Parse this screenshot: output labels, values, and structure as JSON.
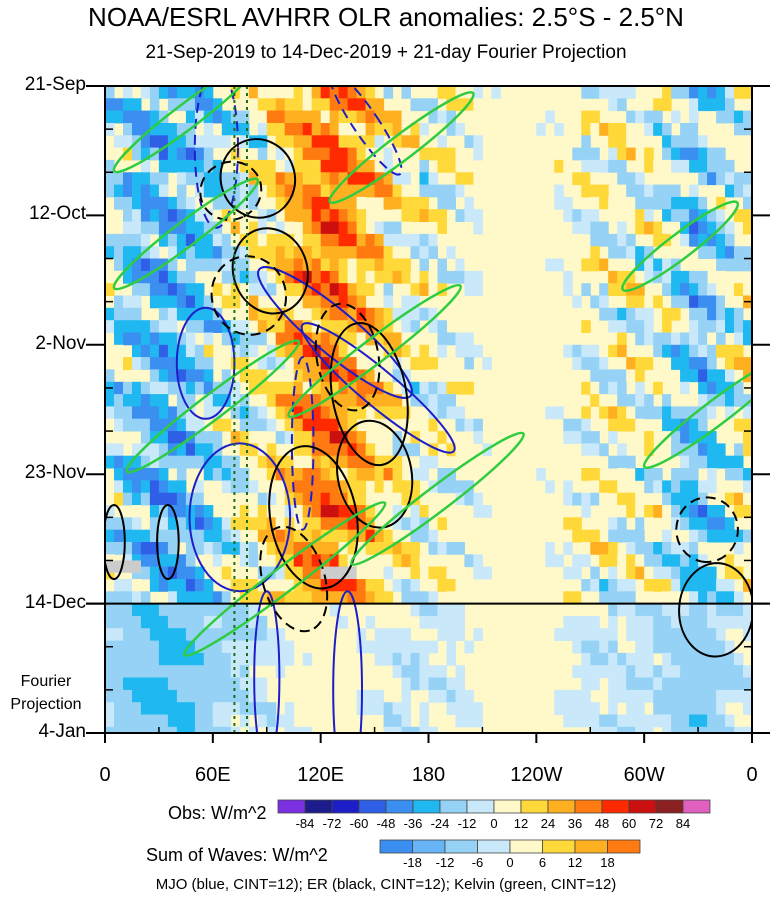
{
  "chart_data": {
    "type": "heatmap",
    "title": "NOAA/ESRL AVHRR OLR anomalies: 2.5°S - 2.5°N",
    "subtitle": "21-Sep-2019 to 14-Dec-2019 + 21-day Fourier Projection",
    "x_ticks": [
      "0",
      "60E",
      "120E",
      "180",
      "120W",
      "60W",
      "0"
    ],
    "x_tick_lons": [
      0,
      60,
      120,
      180,
      240,
      300,
      360
    ],
    "y_ticks": [
      "21-Sep",
      "12-Oct",
      "2-Nov",
      "23-Nov",
      "14-Dec",
      "4-Jan"
    ],
    "y_tick_days": [
      0,
      21,
      42,
      63,
      84,
      105
    ],
    "projection_start_day": 84,
    "projection_label": [
      "Fourier",
      "Projection"
    ],
    "obs_colorbar": {
      "label": "Obs: W/m^2",
      "ticks": [
        "-84",
        "-72",
        "-60",
        "-48",
        "-36",
        "-24",
        "-12",
        "0",
        "12",
        "24",
        "36",
        "48",
        "60",
        "72",
        "84"
      ],
      "colors": [
        "#7a2fe0",
        "#1c1c8c",
        "#1e1ec8",
        "#2f5fe6",
        "#3a8ff0",
        "#1fb8f0",
        "#96d2f5",
        "#c9e9fa",
        "#fff8c8",
        "#ffd839",
        "#ffb020",
        "#ff7a10",
        "#ff2a00",
        "#cc1010",
        "#8a2020",
        "#e060c0"
      ]
    },
    "waves_colorbar": {
      "label": "Sum of Waves: W/m^2",
      "ticks": [
        "-18",
        "-12",
        "-6",
        "0",
        "6",
        "12",
        "18"
      ],
      "colors": [
        "#3a8ff0",
        "#66b3f5",
        "#96d2f5",
        "#c9e9fa",
        "#fff8c8",
        "#ffd839",
        "#ffb020",
        "#ff7a10"
      ]
    },
    "footnote": "MJO (blue, CINT=12); ER (black, CINT=12); Kelvin (green, CINT=12)",
    "series": [
      {
        "name": "MJO",
        "color": "#1e1ec8",
        "contours": [
          {
            "lon": 62,
            "day": 10,
            "dlon": 12,
            "dday": 13,
            "tilt": 0,
            "sign": -1
          },
          {
            "lon": 56,
            "day": 45,
            "dlon": 16,
            "dday": 9,
            "tilt": 0,
            "sign": 1
          },
          {
            "lon": 128,
            "day": 40,
            "dlon": 12,
            "dday": 16,
            "tilt": 0.3,
            "sign": 1
          },
          {
            "lon": 152,
            "day": 49,
            "dlon": 10,
            "dday": 16,
            "tilt": 0.3,
            "sign": 1
          },
          {
            "lon": 145,
            "day": 6,
            "dlon": 7,
            "dday": 10,
            "tilt": 0.2,
            "sign": -1
          },
          {
            "lon": 110,
            "day": 58,
            "dlon": 6,
            "dday": 14,
            "tilt": 0,
            "sign": -1
          },
          {
            "lon": 75,
            "day": 70,
            "dlon": 28,
            "dday": 12,
            "tilt": 0,
            "sign": 1
          },
          {
            "lon": 90,
            "day": 96,
            "dlon": 7,
            "dday": 14,
            "tilt": 0,
            "sign": 1
          },
          {
            "lon": 135,
            "day": 98,
            "dlon": 8,
            "dday": 16,
            "tilt": 0,
            "sign": 1
          }
        ]
      },
      {
        "name": "ER",
        "color": "#000000",
        "contours": [
          {
            "lon": 85,
            "day": 15,
            "dlon": 22,
            "dday": 6,
            "tilt": -0.45,
            "sign": 1
          },
          {
            "lon": 70,
            "day": 17,
            "dlon": 16,
            "dday": 5,
            "tilt": -0.4,
            "sign": -1
          },
          {
            "lon": 92,
            "day": 30,
            "dlon": 24,
            "dday": 6,
            "tilt": -0.45,
            "sign": 1
          },
          {
            "lon": 80,
            "day": 34,
            "dlon": 22,
            "dday": 6,
            "tilt": -0.45,
            "sign": -1
          },
          {
            "lon": 147,
            "day": 50,
            "dlon": 40,
            "dday": 6,
            "tilt": -0.5,
            "sign": 1
          },
          {
            "lon": 135,
            "day": 44,
            "dlon": 30,
            "dday": 5,
            "tilt": -0.5,
            "sign": -1
          },
          {
            "lon": 150,
            "day": 63,
            "dlon": 30,
            "dday": 6,
            "tilt": -0.5,
            "sign": 1
          },
          {
            "lon": 116,
            "day": 70,
            "dlon": 40,
            "dday": 7,
            "tilt": -0.5,
            "sign": 1
          },
          {
            "lon": 105,
            "day": 80,
            "dlon": 30,
            "dday": 5,
            "tilt": -0.45,
            "sign": -1
          },
          {
            "lon": 340,
            "day": 85,
            "dlon": 26,
            "dday": 6,
            "tilt": -0.6,
            "sign": 1
          },
          {
            "lon": 335,
            "day": 72,
            "dlon": 18,
            "dday": 5,
            "tilt": -0.6,
            "sign": -1
          },
          {
            "lon": 35,
            "day": 74,
            "dlon": 6,
            "dday": 6,
            "tilt": 0,
            "sign": 1
          },
          {
            "lon": 5,
            "day": 74,
            "dlon": 6,
            "dday": 6,
            "tilt": 0,
            "sign": 1
          }
        ]
      },
      {
        "name": "Kelvin",
        "color": "#2ecc40",
        "contours": [
          {
            "lon": 45,
            "day": 5,
            "dlon": 50,
            "dday": 2,
            "tilt": 0.22,
            "sign": 1
          },
          {
            "lon": 165,
            "day": 10,
            "dlon": 50,
            "dday": 2,
            "tilt": 0.22,
            "sign": 1
          },
          {
            "lon": 45,
            "day": 24,
            "dlon": 50,
            "dday": 2,
            "tilt": 0.22,
            "sign": 1
          },
          {
            "lon": 320,
            "day": 26,
            "dlon": 40,
            "dday": 2,
            "tilt": 0.22,
            "sign": 1
          },
          {
            "lon": 150,
            "day": 43,
            "dlon": 60,
            "dday": 2,
            "tilt": 0.22,
            "sign": 1
          },
          {
            "lon": 60,
            "day": 52,
            "dlon": 60,
            "dday": 2,
            "tilt": 0.22,
            "sign": 1
          },
          {
            "lon": 185,
            "day": 67,
            "dlon": 60,
            "dday": 2,
            "tilt": 0.22,
            "sign": 1
          },
          {
            "lon": 340,
            "day": 53,
            "dlon": 50,
            "dday": 2,
            "tilt": 0.22,
            "sign": 1
          },
          {
            "lon": 100,
            "day": 80,
            "dlon": 70,
            "dday": 2,
            "tilt": 0.22,
            "sign": 1
          }
        ]
      }
    ],
    "missing_data_color": "#cccccc"
  }
}
